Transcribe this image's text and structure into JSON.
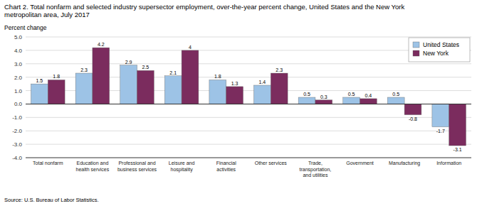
{
  "chart_data": {
    "type": "bar",
    "title": "Chart 2. Total nonfarm and selected industry supersector employment, over-the-year percent change, United States and the New York\nmetropolitan area, July 2017",
    "ylabel": "Percent change",
    "source": "Source: U.S. Bureau of Labor Statistics.",
    "categories": [
      "Total nonfarm",
      "Education and\nhealth services",
      "Professional and\nbusiness services",
      "Leisure and\nhospitality",
      "Financial\nactivities",
      "Other services",
      "Trade,\ntransportation,\nand utilities",
      "Government",
      "Manufacturing",
      "Information"
    ],
    "series": [
      {
        "name": "United States",
        "color": "#9DC3E6",
        "values": [
          1.5,
          2.3,
          2.9,
          2.1,
          1.8,
          1.4,
          0.5,
          0.5,
          0.5,
          -1.7
        ]
      },
      {
        "name": "New York",
        "color": "#7B2C5E",
        "values": [
          1.8,
          4.2,
          2.5,
          4.0,
          1.3,
          2.3,
          0.3,
          0.4,
          -0.8,
          -3.1
        ]
      }
    ],
    "ylim": [
      -4.0,
      5.0
    ],
    "yticks": [
      {
        "value": -4.0,
        "label": "-4.0"
      },
      {
        "value": -3.0,
        "label": "-3.0"
      },
      {
        "value": -2.0,
        "label": "-2.0"
      },
      {
        "value": -1.0,
        "label": "-1.0"
      },
      {
        "value": 0.0,
        "label": "0.0"
      },
      {
        "value": 1.0,
        "label": "1.0"
      },
      {
        "value": 2.0,
        "label": "2.0"
      },
      {
        "value": 3.0,
        "label": "3.0"
      },
      {
        "value": 4.0,
        "label": "4.0"
      },
      {
        "value": 5.0,
        "label": "5.0"
      }
    ],
    "grid": true,
    "legend": "upper right",
    "data_labels": true
  }
}
